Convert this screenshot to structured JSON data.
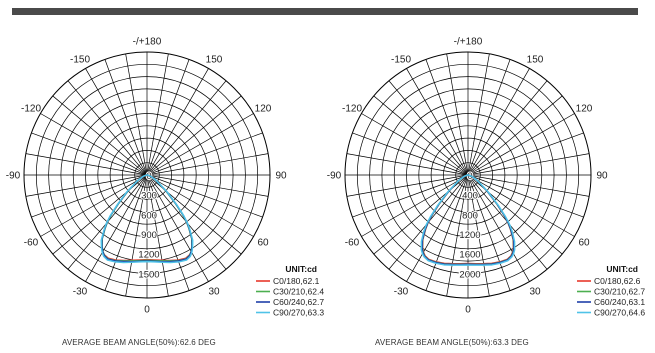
{
  "charts": [
    {
      "caption": "AVERAGE BEAM ANGLE(50%):62.6 DEG",
      "legend": {
        "unit": "UNIT:cd",
        "entries": [
          "C0/180,62.1",
          "C30/210,62.4",
          "C60/240,62.7",
          "C90/270,63.3"
        ]
      }
    },
    {
      "caption": "AVERAGE BEAM ANGLE(50%):63.3 DEG",
      "legend": {
        "unit": "UNIT:cd",
        "entries": [
          "C0/180,62.6",
          "C30/210,62.7",
          "C60/240,63.1",
          "C90/270,64.6"
        ]
      }
    }
  ],
  "colors": {
    "background": "#ffffff",
    "topbar": "#4a4a4a",
    "grid": "#000000",
    "series": [
      "#e8382b",
      "#4caf50",
      "#1f3fa8",
      "#4fc3e8"
    ]
  },
  "chart_data": [
    {
      "type": "polar",
      "angle_labels": [
        "-/+180",
        "150",
        "120",
        "90",
        "60",
        "30",
        "0",
        "-30",
        "-60",
        "-90",
        "-120",
        "-150"
      ],
      "radial_ticks": [
        0,
        300,
        600,
        900,
        1200,
        1500
      ],
      "rmax": 1500,
      "unit": "UNIT:cd",
      "series": [
        {
          "name": "C0/180,62.1",
          "color": "#e8382b",
          "angles": [
            0,
            5,
            10,
            15,
            20,
            25,
            28,
            30,
            32,
            35,
            38,
            40,
            42,
            45,
            50,
            60,
            70,
            90
          ],
          "values": [
            1290,
            1300,
            1320,
            1350,
            1380,
            1400,
            1380,
            1350,
            1300,
            1200,
            1050,
            950,
            820,
            620,
            380,
            150,
            60,
            10
          ]
        },
        {
          "name": "C30/210,62.4",
          "color": "#4caf50",
          "angles": [
            0,
            5,
            10,
            15,
            20,
            25,
            28,
            30,
            32,
            35,
            38,
            40,
            42,
            45,
            50,
            60,
            70,
            90
          ],
          "values": [
            1300,
            1310,
            1330,
            1355,
            1390,
            1410,
            1385,
            1345,
            1290,
            1190,
            1040,
            940,
            810,
            610,
            375,
            148,
            58,
            10
          ]
        },
        {
          "name": "C60/240,62.7",
          "color": "#1f3fa8",
          "angles": [
            0,
            5,
            10,
            15,
            20,
            25,
            28,
            30,
            32,
            35,
            38,
            40,
            42,
            45,
            50,
            60,
            70,
            90
          ],
          "values": [
            1310,
            1320,
            1340,
            1365,
            1395,
            1415,
            1390,
            1350,
            1295,
            1200,
            1050,
            950,
            825,
            625,
            385,
            152,
            60,
            10
          ]
        },
        {
          "name": "C90/270,63.3",
          "color": "#4fc3e8",
          "angles": [
            0,
            5,
            10,
            15,
            20,
            25,
            28,
            30,
            32,
            35,
            38,
            40,
            42,
            45,
            50,
            60,
            70,
            90
          ],
          "values": [
            1320,
            1330,
            1350,
            1380,
            1410,
            1430,
            1405,
            1365,
            1310,
            1215,
            1065,
            965,
            840,
            640,
            400,
            160,
            64,
            10
          ]
        }
      ]
    },
    {
      "type": "polar",
      "angle_labels": [
        "-/+180",
        "150",
        "120",
        "90",
        "60",
        "30",
        "0",
        "-30",
        "-60",
        "-90",
        "-120",
        "-150"
      ],
      "radial_ticks": [
        0,
        400,
        800,
        1200,
        1600,
        2000
      ],
      "rmax": 2000,
      "unit": "UNIT:cd",
      "series": [
        {
          "name": "C0/180,62.6",
          "color": "#e8382b",
          "angles": [
            0,
            5,
            10,
            15,
            20,
            25,
            28,
            30,
            32,
            35,
            38,
            40,
            42,
            45,
            50,
            60,
            70,
            90
          ],
          "values": [
            1800,
            1810,
            1830,
            1860,
            1880,
            1890,
            1860,
            1810,
            1740,
            1600,
            1400,
            1260,
            1080,
            820,
            500,
            200,
            80,
            12
          ]
        },
        {
          "name": "C30/210,62.7",
          "color": "#4caf50",
          "angles": [
            0,
            5,
            10,
            15,
            20,
            25,
            28,
            30,
            32,
            35,
            38,
            40,
            42,
            45,
            50,
            60,
            70,
            90
          ],
          "values": [
            1810,
            1820,
            1840,
            1870,
            1890,
            1900,
            1870,
            1820,
            1750,
            1610,
            1410,
            1270,
            1090,
            830,
            505,
            202,
            80,
            12
          ]
        },
        {
          "name": "C60/240,63.1",
          "color": "#1f3fa8",
          "angles": [
            0,
            5,
            10,
            15,
            20,
            25,
            28,
            30,
            32,
            35,
            38,
            40,
            42,
            45,
            50,
            60,
            70,
            90
          ],
          "values": [
            1815,
            1825,
            1845,
            1875,
            1895,
            1905,
            1875,
            1830,
            1760,
            1620,
            1420,
            1280,
            1100,
            840,
            510,
            205,
            82,
            12
          ]
        },
        {
          "name": "C90/270,64.6",
          "color": "#4fc3e8",
          "angles": [
            0,
            5,
            10,
            15,
            20,
            25,
            28,
            30,
            32,
            35,
            38,
            40,
            42,
            45,
            50,
            60,
            70,
            90
          ],
          "values": [
            1830,
            1840,
            1860,
            1890,
            1910,
            1920,
            1890,
            1850,
            1790,
            1650,
            1460,
            1320,
            1140,
            870,
            530,
            215,
            86,
            12
          ]
        }
      ]
    }
  ]
}
